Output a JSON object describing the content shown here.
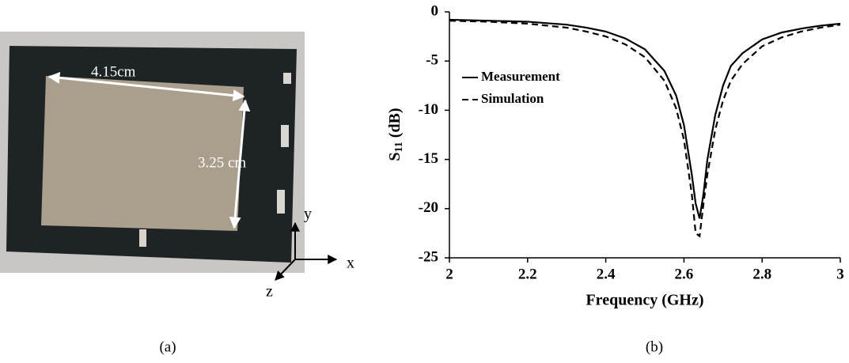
{
  "panel_a": {
    "width_label": "4.15cm",
    "height_label": "3.25 cm",
    "axis_x": "x",
    "axis_y": "y",
    "axis_z": "z",
    "caption": "(a)"
  },
  "chart_data": {
    "type": "line",
    "caption": "(b)",
    "x_label": "Frequency (GHz)",
    "y_label_parts": [
      "S",
      "11",
      " (dB)"
    ],
    "x": [
      2,
      2.1,
      2.2,
      2.3,
      2.35,
      2.4,
      2.45,
      2.5,
      2.55,
      2.58,
      2.6,
      2.62,
      2.63,
      2.64,
      2.65,
      2.66,
      2.68,
      2.7,
      2.72,
      2.75,
      2.8,
      2.85,
      2.9,
      2.95,
      3
    ],
    "series": [
      {
        "name": "Measurement",
        "color": "#000000",
        "dash": "solid",
        "values": [
          -0.8,
          -0.9,
          -1.0,
          -1.3,
          -1.6,
          -2.0,
          -2.7,
          -3.8,
          -6.0,
          -8.5,
          -11.5,
          -16.5,
          -19.5,
          -21,
          -18.5,
          -15,
          -10.5,
          -7.5,
          -5.5,
          -4.2,
          -2.8,
          -2.1,
          -1.7,
          -1.4,
          -1.2
        ]
      },
      {
        "name": "Simulation",
        "color": "#000000",
        "dash": "dashed",
        "values": [
          -0.9,
          -1.0,
          -1.2,
          -1.6,
          -2.0,
          -2.5,
          -3.3,
          -4.6,
          -7.0,
          -9.8,
          -13,
          -18.5,
          -22.5,
          -22.8,
          -19.5,
          -16.5,
          -12,
          -9,
          -7,
          -5.3,
          -3.5,
          -2.6,
          -2.0,
          -1.6,
          -1.3
        ]
      }
    ],
    "xlim": [
      2,
      3
    ],
    "xticks": [
      2,
      2.2,
      2.4,
      2.6,
      2.8,
      3
    ],
    "ylim": [
      -25,
      0
    ],
    "yticks": [
      0,
      -5,
      -10,
      -15,
      -20,
      -25
    ],
    "grid": false,
    "legend": "upper left"
  }
}
